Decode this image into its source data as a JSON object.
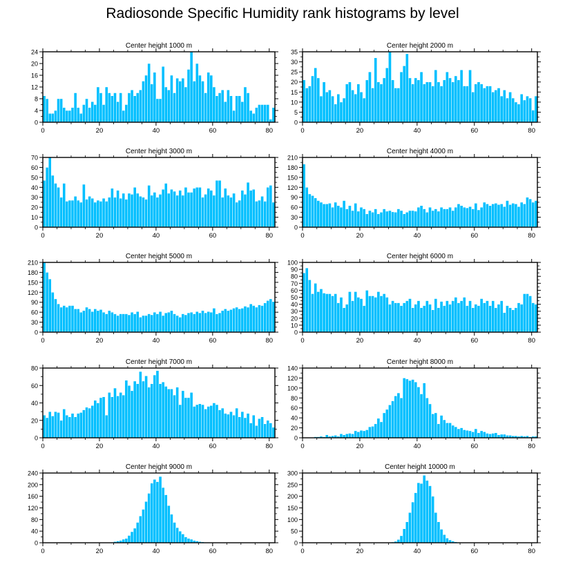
{
  "title": "Radiosonde Specific Humidity rank histograms by level",
  "colors": {
    "bar": "#00BFFF",
    "bar_edge": "#ffffff",
    "axis": "#000000"
  },
  "chart_data": [
    {
      "type": "bar",
      "title": "Center height 1000 m",
      "xlim": [
        0,
        82
      ],
      "ylim": [
        0,
        24
      ],
      "xticks": [
        0,
        20,
        40,
        60,
        80
      ],
      "yticks": [
        0,
        4,
        8,
        12,
        16,
        20,
        24
      ],
      "values": [
        9,
        8,
        3,
        3,
        4,
        8,
        8,
        5,
        4,
        4,
        5,
        10,
        5,
        3,
        6,
        8,
        5,
        7,
        6,
        12,
        10,
        6,
        12,
        10,
        9,
        10,
        7,
        10,
        4,
        6,
        10,
        11,
        9,
        10,
        11,
        14,
        16,
        20,
        13,
        17,
        8,
        8,
        19,
        12,
        11,
        16,
        10,
        15,
        14,
        15,
        12,
        18,
        24,
        14,
        20,
        16,
        14,
        10,
        17,
        16,
        12,
        9,
        10,
        11,
        7,
        11,
        9,
        4,
        9,
        9,
        7,
        12,
        10,
        4,
        3,
        5,
        6,
        6,
        6,
        6,
        1,
        5
      ]
    },
    {
      "type": "bar",
      "title": "Center height 2000 m",
      "xlim": [
        0,
        82
      ],
      "ylim": [
        0,
        35
      ],
      "xticks": [
        0,
        20,
        40,
        60,
        80
      ],
      "yticks": [
        0,
        5,
        10,
        15,
        20,
        25,
        30,
        35
      ],
      "values": [
        21,
        17,
        18,
        23,
        27,
        22,
        13,
        20,
        15,
        16,
        13,
        9,
        14,
        10,
        12,
        19,
        20,
        16,
        14,
        19,
        15,
        12,
        21,
        25,
        17,
        32,
        20,
        19,
        22,
        27,
        35,
        21,
        17,
        17,
        25,
        28,
        34,
        22,
        19,
        22,
        21,
        25,
        19,
        20,
        20,
        18,
        26,
        20,
        18,
        21,
        25,
        22,
        20,
        23,
        21,
        26,
        18,
        18,
        26,
        15,
        19,
        20,
        19,
        17,
        18,
        18,
        15,
        16,
        17,
        13,
        16,
        12,
        15,
        12,
        10,
        9,
        14,
        11,
        13,
        12,
        6,
        13
      ]
    },
    {
      "type": "bar",
      "title": "Center height 3000 m",
      "xlim": [
        0,
        82
      ],
      "ylim": [
        0,
        70
      ],
      "xticks": [
        0,
        20,
        40,
        60,
        80
      ],
      "yticks": [
        0,
        10,
        20,
        30,
        40,
        50,
        60,
        70
      ],
      "values": [
        47,
        60,
        70,
        52,
        44,
        40,
        30,
        44,
        26,
        27,
        27,
        31,
        27,
        25,
        43,
        28,
        31,
        29,
        25,
        27,
        26,
        29,
        26,
        30,
        39,
        30,
        37,
        29,
        34,
        28,
        34,
        33,
        40,
        34,
        31,
        30,
        28,
        42,
        32,
        35,
        30,
        33,
        38,
        44,
        34,
        38,
        36,
        32,
        37,
        32,
        40,
        35,
        35,
        39,
        40,
        40,
        30,
        33,
        39,
        37,
        32,
        47,
        47,
        30,
        39,
        32,
        30,
        34,
        25,
        27,
        37,
        33,
        45,
        37,
        38,
        26,
        27,
        31,
        26,
        40,
        42,
        25
      ]
    },
    {
      "type": "bar",
      "title": "Center height 4000 m",
      "xlim": [
        0,
        82
      ],
      "ylim": [
        0,
        210
      ],
      "xticks": [
        0,
        20,
        40,
        60,
        80
      ],
      "yticks": [
        0,
        30,
        60,
        90,
        120,
        150,
        180,
        210
      ],
      "values": [
        190,
        120,
        100,
        95,
        88,
        80,
        75,
        70,
        70,
        72,
        60,
        75,
        65,
        60,
        80,
        55,
        65,
        50,
        72,
        48,
        60,
        55,
        40,
        50,
        45,
        55,
        40,
        45,
        55,
        48,
        50,
        46,
        45,
        55,
        50,
        40,
        45,
        50,
        50,
        48,
        60,
        65,
        55,
        45,
        60,
        50,
        55,
        48,
        60,
        55,
        55,
        60,
        50,
        60,
        70,
        65,
        60,
        58,
        62,
        55,
        72,
        52,
        60,
        75,
        70,
        65,
        70,
        72,
        68,
        70,
        62,
        80,
        68,
        72,
        70,
        62,
        75,
        70,
        90,
        85,
        75,
        80
      ]
    },
    {
      "type": "bar",
      "title": "Center height 5000 m",
      "xlim": [
        0,
        82
      ],
      "ylim": [
        0,
        210
      ],
      "xticks": [
        0,
        20,
        40,
        60,
        80
      ],
      "yticks": [
        0,
        30,
        60,
        90,
        120,
        150,
        180,
        210
      ],
      "values": [
        210,
        180,
        160,
        120,
        100,
        85,
        75,
        80,
        75,
        80,
        80,
        70,
        70,
        60,
        65,
        75,
        70,
        62,
        70,
        65,
        68,
        60,
        55,
        65,
        60,
        55,
        50,
        55,
        55,
        55,
        52,
        60,
        55,
        62,
        45,
        50,
        50,
        55,
        52,
        60,
        55,
        62,
        50,
        58,
        60,
        65,
        55,
        50,
        45,
        55,
        52,
        58,
        60,
        55,
        62,
        58,
        65,
        58,
        62,
        60,
        72,
        55,
        58,
        65,
        70,
        65,
        68,
        72,
        75,
        70,
        72,
        78,
        75,
        85,
        80,
        75,
        82,
        80,
        88,
        95,
        100,
        92
      ]
    },
    {
      "type": "bar",
      "title": "Center height 6000 m",
      "xlim": [
        0,
        82
      ],
      "ylim": [
        0,
        100
      ],
      "xticks": [
        0,
        20,
        40,
        60,
        80
      ],
      "yticks": [
        0,
        10,
        20,
        30,
        40,
        50,
        60,
        70,
        80,
        90,
        100
      ],
      "values": [
        85,
        92,
        75,
        55,
        70,
        58,
        62,
        56,
        55,
        55,
        52,
        55,
        42,
        50,
        35,
        40,
        58,
        45,
        58,
        50,
        48,
        38,
        60,
        52,
        52,
        50,
        58,
        52,
        55,
        50,
        40,
        45,
        42,
        42,
        38,
        42,
        45,
        48,
        35,
        40,
        45,
        35,
        38,
        45,
        40,
        32,
        48,
        35,
        44,
        38,
        45,
        40,
        45,
        50,
        42,
        45,
        50,
        38,
        45,
        35,
        40,
        38,
        48,
        42,
        45,
        38,
        45,
        35,
        40,
        45,
        28,
        38,
        35,
        32,
        35,
        42,
        40,
        55,
        55,
        52,
        42,
        40
      ]
    },
    {
      "type": "bar",
      "title": "Center height 7000 m",
      "xlim": [
        0,
        82
      ],
      "ylim": [
        0,
        80
      ],
      "xticks": [
        0,
        20,
        40,
        60,
        80
      ],
      "yticks": [
        0,
        20,
        40,
        60,
        80
      ],
      "values": [
        26,
        23,
        30,
        25,
        30,
        29,
        20,
        33,
        26,
        24,
        28,
        24,
        28,
        29,
        32,
        35,
        34,
        37,
        43,
        40,
        46,
        47,
        26,
        52,
        47,
        57,
        48,
        52,
        49,
        66,
        60,
        54,
        65,
        62,
        76,
        65,
        71,
        58,
        62,
        72,
        77,
        62,
        64,
        59,
        56,
        56,
        49,
        58,
        38,
        54,
        46,
        46,
        52,
        36,
        38,
        39,
        38,
        33,
        36,
        37,
        40,
        38,
        32,
        34,
        28,
        27,
        30,
        26,
        34,
        24,
        30,
        23,
        28,
        17,
        26,
        14,
        22,
        24,
        16,
        20,
        17,
        12
      ]
    },
    {
      "type": "bar",
      "title": "Center height 8000 m",
      "xlim": [
        0,
        82
      ],
      "ylim": [
        0,
        140
      ],
      "xticks": [
        0,
        20,
        40,
        60,
        80
      ],
      "yticks": [
        0,
        20,
        40,
        60,
        80,
        100,
        120,
        140
      ],
      "values": [
        0,
        0,
        0,
        1,
        2,
        2,
        3,
        2,
        6,
        3,
        4,
        5,
        3,
        8,
        6,
        8,
        9,
        8,
        14,
        12,
        15,
        14,
        16,
        22,
        23,
        28,
        39,
        32,
        50,
        57,
        66,
        74,
        84,
        90,
        80,
        120,
        118,
        115,
        117,
        112,
        102,
        88,
        110,
        80,
        68,
        48,
        50,
        28,
        45,
        36,
        30,
        30,
        25,
        22,
        18,
        20,
        16,
        15,
        14,
        12,
        18,
        10,
        14,
        12,
        9,
        8,
        9,
        10,
        6,
        7,
        7,
        5,
        5,
        4,
        4,
        3,
        4,
        3,
        4,
        2,
        3,
        3
      ]
    },
    {
      "type": "bar",
      "title": "Center height 9000 m",
      "xlim": [
        0,
        82
      ],
      "ylim": [
        0,
        240
      ],
      "xticks": [
        0,
        20,
        40,
        60,
        80
      ],
      "yticks": [
        0,
        40,
        80,
        120,
        160,
        200,
        240
      ],
      "values": [
        0,
        0,
        0,
        0,
        0,
        0,
        0,
        0,
        0,
        0,
        0,
        0,
        0,
        0,
        0,
        0,
        0,
        0,
        0,
        0,
        0,
        0,
        0,
        1,
        2,
        4,
        6,
        8,
        12,
        15,
        25,
        38,
        50,
        70,
        92,
        115,
        142,
        170,
        205,
        218,
        210,
        228,
        190,
        165,
        128,
        98,
        70,
        52,
        40,
        30,
        20,
        15,
        12,
        8,
        6,
        4,
        3,
        2,
        2,
        1,
        1,
        1,
        0,
        0,
        0,
        0,
        0,
        0,
        0,
        0,
        0,
        0,
        0,
        0,
        0,
        0,
        0,
        0,
        0,
        0,
        0,
        0
      ]
    },
    {
      "type": "bar",
      "title": "Center height 10000 m",
      "xlim": [
        0,
        82
      ],
      "ylim": [
        0,
        300
      ],
      "xticks": [
        0,
        20,
        40,
        60,
        80
      ],
      "yticks": [
        0,
        50,
        100,
        150,
        200,
        250,
        300
      ],
      "values": [
        0,
        0,
        0,
        0,
        0,
        0,
        0,
        0,
        0,
        0,
        0,
        0,
        0,
        0,
        0,
        0,
        0,
        0,
        0,
        0,
        0,
        0,
        0,
        0,
        0,
        0,
        0,
        0,
        0,
        0,
        1,
        3,
        6,
        14,
        30,
        60,
        90,
        130,
        175,
        215,
        258,
        255,
        290,
        268,
        245,
        200,
        130,
        90,
        58,
        35,
        20,
        12,
        7,
        4,
        2,
        1,
        1,
        0,
        0,
        0,
        0,
        0,
        0,
        0,
        0,
        0,
        0,
        0,
        0,
        0,
        0,
        0,
        0,
        0,
        0,
        0,
        0,
        0,
        0,
        0,
        0,
        0
      ]
    }
  ]
}
